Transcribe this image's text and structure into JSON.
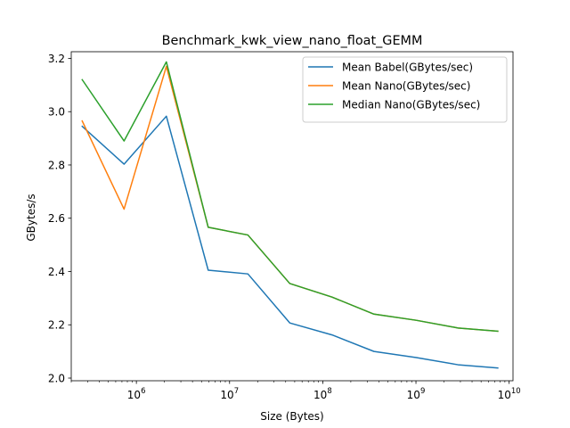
{
  "chart_data": {
    "type": "line",
    "title": "Benchmark_kwk_view_nano_float_GEMM",
    "xlabel": "Size (Bytes)",
    "ylabel": "GBytes/s",
    "xscale": "log",
    "xlim": [
      200000,
      11000000000
    ],
    "ylim": [
      1.99,
      3.225
    ],
    "x_ticks": [
      {
        "value": 1000000,
        "base": "10",
        "exp": "6"
      },
      {
        "value": 10000000,
        "base": "10",
        "exp": "7"
      },
      {
        "value": 100000000,
        "base": "10",
        "exp": "8"
      },
      {
        "value": 1000000000,
        "base": "10",
        "exp": "9"
      },
      {
        "value": 10000000000,
        "base": "10",
        "exp": "10"
      }
    ],
    "y_ticks": [
      2.0,
      2.2,
      2.4,
      2.6,
      2.8,
      3.0,
      3.2
    ],
    "y_tick_labels": [
      "2.0",
      "2.2",
      "2.4",
      "2.6",
      "2.8",
      "3.0",
      "3.2"
    ],
    "x": [
      262144,
      737280,
      2097152,
      5898240,
      15728640,
      44236800,
      125829120,
      353894400,
      1006632960,
      2831155200,
      7549747200
    ],
    "series": [
      {
        "name": "Mean Babel(GBytes/sec)",
        "color": "#1f77b4",
        "values": [
          2.945,
          2.803,
          2.983,
          2.405,
          2.391,
          2.207,
          2.162,
          2.1,
          2.077,
          2.05,
          2.038
        ]
      },
      {
        "name": "Mean Nano(GBytes/sec)",
        "color": "#ff7f0e",
        "values": [
          2.965,
          2.634,
          3.17,
          2.566,
          2.537,
          2.355,
          2.304,
          2.24,
          2.217,
          2.188,
          2.176
        ]
      },
      {
        "name": "Median Nano(GBytes/sec)",
        "color": "#2ca02c",
        "values": [
          3.12,
          2.89,
          3.187,
          2.566,
          2.537,
          2.355,
          2.304,
          2.24,
          2.217,
          2.188,
          2.176
        ]
      }
    ],
    "legend_position": "top-right",
    "grid": false
  }
}
